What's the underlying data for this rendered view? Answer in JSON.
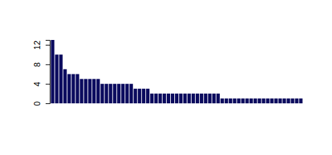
{
  "chart_data": {
    "type": "bar",
    "categories": [
      null,
      null,
      null,
      null,
      null,
      null,
      null,
      null,
      null,
      null,
      null,
      null,
      null,
      null,
      null,
      null,
      null,
      null,
      null,
      null,
      null,
      null,
      null,
      null,
      null,
      null,
      null,
      null,
      null,
      null,
      null,
      null,
      null,
      null,
      null,
      null,
      null,
      null,
      null,
      null,
      null,
      null,
      null,
      null,
      null,
      null,
      null,
      null,
      null,
      null,
      null,
      null,
      null,
      null,
      null,
      null,
      null,
      null,
      null,
      null,
      null
    ],
    "values": [
      13,
      10,
      10,
      7,
      6,
      6,
      6,
      5,
      5,
      5,
      5,
      5,
      4,
      4,
      4,
      4,
      4,
      4,
      4,
      4,
      3,
      3,
      3,
      3,
      2,
      2,
      2,
      2,
      2,
      2,
      2,
      2,
      2,
      2,
      2,
      2,
      2,
      2,
      2,
      2,
      2,
      1,
      1,
      1,
      1,
      1,
      1,
      1,
      1,
      1,
      1,
      1,
      1,
      1,
      1,
      1,
      1,
      1,
      1,
      1,
      1
    ],
    "color": "#0b0b5e",
    "ylim": [
      0,
      13
    ],
    "yticks": [
      0,
      4,
      8,
      12
    ],
    "grid": false,
    "tick_labels": "y"
  }
}
